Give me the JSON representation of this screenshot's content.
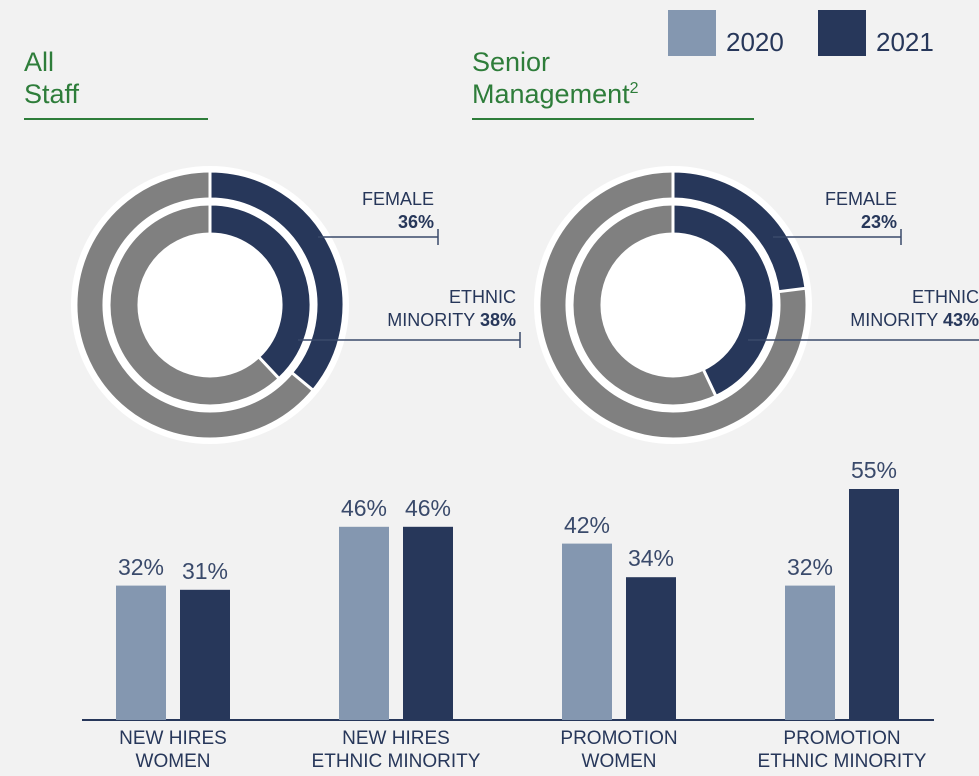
{
  "legend": [
    {
      "name": "2020",
      "color": "#8497b0"
    },
    {
      "name": "2021",
      "color": "#27375a"
    }
  ],
  "chart_data": [
    {
      "type": "donut",
      "title": "All\nStaff",
      "series": [
        {
          "name": "FEMALE",
          "color": "#27375a",
          "values": [
            36
          ],
          "value_labels": [
            "36%"
          ]
        },
        {
          "name": "ETHNIC\nMINORITY",
          "color": "#27375a",
          "values": [
            38
          ],
          "value_labels": [
            "38%"
          ]
        }
      ]
    },
    {
      "type": "donut",
      "title": "Senior\nManagement",
      "title_superscript": "2",
      "series": [
        {
          "name": "FEMALE",
          "color": "#27375a",
          "values": [
            23
          ],
          "value_labels": [
            "23%"
          ]
        },
        {
          "name": "ETHNIC\nMINORITY",
          "color": "#27375a",
          "values": [
            43
          ],
          "value_labels": [
            "43%"
          ]
        }
      ]
    },
    {
      "type": "bar",
      "categories": [
        "NEW HIRES\nWOMEN",
        "NEW HIRES\nETHNIC MINORITY",
        "PROMOTION\nWOMEN",
        "PROMOTION\nETHNIC MINORITY"
      ],
      "series": [
        {
          "name": "2020",
          "color": "#8497b0",
          "values": [
            32,
            46,
            42,
            32
          ],
          "value_labels": [
            "32%",
            "46%",
            "42%",
            "32%"
          ]
        },
        {
          "name": "2021",
          "color": "#27375a",
          "values": [
            31,
            46,
            34,
            55
          ],
          "value_labels": [
            "31%",
            "46%",
            "34%",
            "55%"
          ]
        }
      ]
    }
  ]
}
